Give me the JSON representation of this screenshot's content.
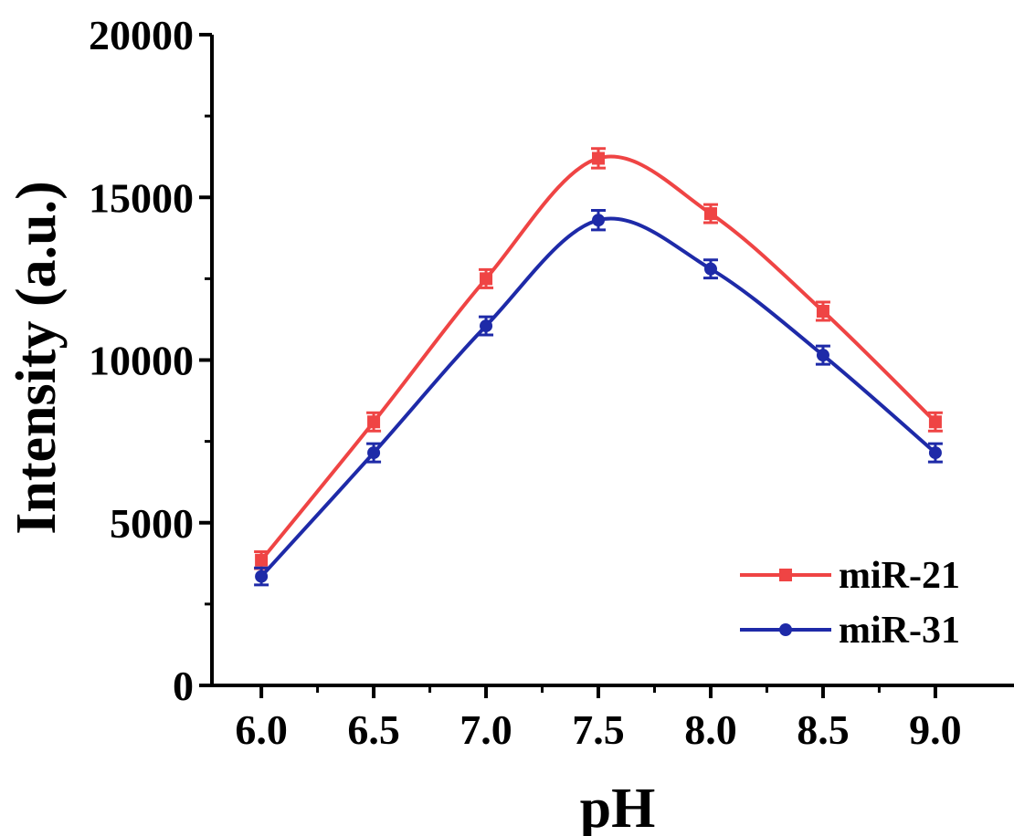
{
  "chart_data": {
    "type": "line",
    "xlabel": "pH",
    "ylabel": "Intensity (a.u.)",
    "x": [
      6.0,
      6.5,
      7.0,
      7.5,
      8.0,
      8.5,
      9.0
    ],
    "x_tick_labels": [
      "6.0",
      "6.5",
      "7.0",
      "7.5",
      "8.0",
      "8.5",
      "9.0"
    ],
    "y_tick_labels": [
      "0",
      "5000",
      "10000",
      "15000",
      "20000"
    ],
    "xlim": [
      5.78,
      9.35
    ],
    "ylim": [
      0,
      20000
    ],
    "grid": false,
    "legend_position": "bottom-right",
    "series": [
      {
        "name": "miR-21",
        "color": "#ef4444",
        "marker": "square",
        "values": [
          3850,
          8100,
          12500,
          16200,
          14500,
          11500,
          8100
        ],
        "errors": [
          260,
          280,
          280,
          300,
          280,
          280,
          280
        ]
      },
      {
        "name": "miR-31",
        "color": "#1e2aa8",
        "marker": "circle",
        "values": [
          3350,
          7150,
          11050,
          14300,
          12800,
          10150,
          7150
        ],
        "errors": [
          260,
          280,
          280,
          300,
          280,
          280,
          280
        ]
      }
    ]
  }
}
